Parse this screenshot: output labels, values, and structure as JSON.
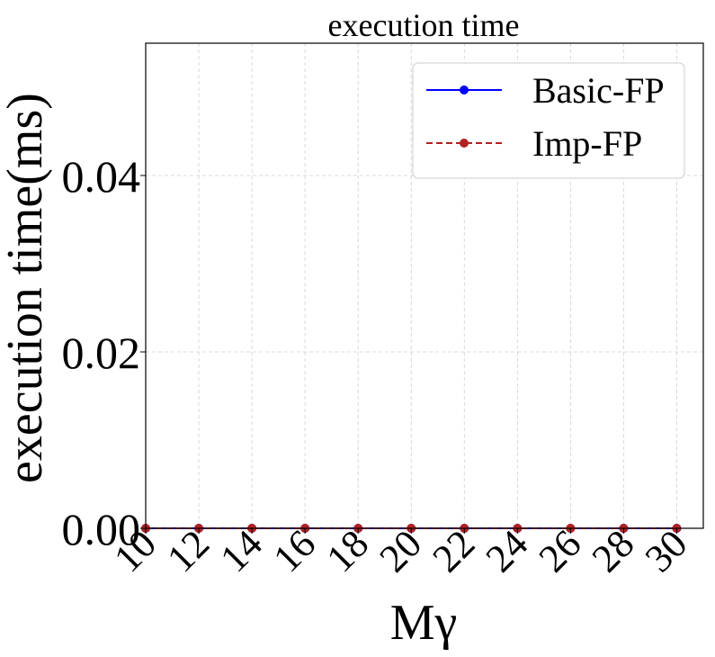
{
  "chart_data": {
    "type": "line",
    "title": "execution time",
    "xlabel": "Mγ",
    "ylabel": "execution time(ms)",
    "x": [
      10,
      12,
      14,
      16,
      18,
      20,
      22,
      24,
      26,
      28,
      30
    ],
    "xtick_labels": [
      "10",
      "12",
      "14",
      "16",
      "18",
      "20",
      "22",
      "24",
      "26",
      "28",
      "30"
    ],
    "ytick_labels": [
      "0.00",
      "0.02",
      "0.04"
    ],
    "yticks": [
      0.0,
      0.02,
      0.04
    ],
    "xlim": [
      10,
      31
    ],
    "ylim": [
      0.0,
      0.055
    ],
    "grid": true,
    "legend": "top-right",
    "series": [
      {
        "name": "Basic-FP",
        "values": [
          0,
          0,
          0,
          0,
          0,
          0,
          0,
          0,
          0,
          0,
          0
        ],
        "color": "#0000ff",
        "linestyle": "solid",
        "marker": "circle"
      },
      {
        "name": "Imp-FP",
        "values": [
          0,
          0,
          0,
          0,
          0,
          0,
          0,
          0,
          0,
          0,
          0
        ],
        "color": "#b22222",
        "linestyle": "dashed",
        "marker": "circle"
      }
    ]
  }
}
